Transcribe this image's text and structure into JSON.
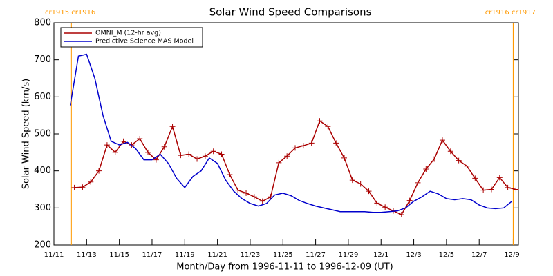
{
  "chart_data": {
    "type": "line",
    "title": "Solar Wind Speed Comparisons",
    "xlabel": "Month/Day from 1996-11-11 to 1996-12-09 (UT)",
    "ylabel": "Solar Wind Speed (km/s)",
    "xlim": [
      0,
      28.4
    ],
    "ylim": [
      200,
      800
    ],
    "xticks": [
      {
        "value": 0,
        "label": "11/11"
      },
      {
        "value": 2,
        "label": "11/13"
      },
      {
        "value": 4,
        "label": "11/15"
      },
      {
        "value": 6,
        "label": "11/17"
      },
      {
        "value": 8,
        "label": "11/19"
      },
      {
        "value": 10,
        "label": "11/21"
      },
      {
        "value": 12,
        "label": "11/23"
      },
      {
        "value": 14,
        "label": "11/25"
      },
      {
        "value": 16,
        "label": "11/27"
      },
      {
        "value": 18,
        "label": "11/29"
      },
      {
        "value": 20,
        "label": "12/1"
      },
      {
        "value": 22,
        "label": "12/3"
      },
      {
        "value": 24,
        "label": "12/5"
      },
      {
        "value": 26,
        "label": "12/7"
      },
      {
        "value": 28,
        "label": "12/9"
      }
    ],
    "yticks": [
      200,
      300,
      400,
      500,
      600,
      700,
      800
    ],
    "legend": "upper left",
    "annotations": [
      {
        "x": 1.05,
        "label": "cr1915 cr1916",
        "color": "#ff9900"
      },
      {
        "x": 28.1,
        "label": "cr1916 cr1917",
        "color": "#ff9900"
      }
    ],
    "series": [
      {
        "name": "OMNI_M (12-hr avg)",
        "color": "#aa0000",
        "marker": "+",
        "x": [
          1.25,
          1.75,
          2.25,
          2.75,
          3.25,
          3.75,
          4.25,
          4.75,
          5.25,
          5.75,
          6.25,
          6.75,
          7.25,
          7.75,
          8.25,
          8.75,
          9.25,
          9.75,
          10.25,
          10.75,
          11.25,
          11.75,
          12.25,
          12.75,
          13.25,
          13.75,
          14.25,
          14.75,
          15.25,
          15.75,
          16.25,
          16.75,
          17.25,
          17.75,
          18.25,
          18.75,
          19.25,
          19.75,
          20.25,
          20.75,
          21.25,
          21.75,
          22.25,
          22.75,
          23.25,
          23.75,
          24.25,
          24.75,
          25.25,
          25.75,
          26.25,
          26.75,
          27.25,
          27.75,
          28.25
        ],
        "values": [
          355,
          356,
          370,
          400,
          470,
          450,
          480,
          470,
          487,
          450,
          430,
          465,
          520,
          442,
          445,
          432,
          440,
          453,
          445,
          390,
          348,
          340,
          330,
          318,
          330,
          422,
          440,
          462,
          468,
          475,
          535,
          520,
          475,
          435,
          375,
          365,
          345,
          313,
          302,
          292,
          282,
          320,
          368,
          405,
          432,
          483,
          453,
          428,
          413,
          380,
          348,
          350,
          382,
          355,
          350
        ]
      },
      {
        "name": "Predictive Science MAS Model",
        "color": "#0000cc",
        "x": [
          1.0,
          1.5,
          2.0,
          2.5,
          3.0,
          3.5,
          4.0,
          4.5,
          5.0,
          5.5,
          6.0,
          6.5,
          7.0,
          7.5,
          8.0,
          8.5,
          9.0,
          9.5,
          10.0,
          10.5,
          11.0,
          11.5,
          12.0,
          12.5,
          13.0,
          13.5,
          14.0,
          14.5,
          15.0,
          15.5,
          16.0,
          16.5,
          17.0,
          17.5,
          18.0,
          18.5,
          19.0,
          19.5,
          20.0,
          20.5,
          21.0,
          21.5,
          22.0,
          22.5,
          23.0,
          23.5,
          24.0,
          24.5,
          25.0,
          25.5,
          26.0,
          26.5,
          27.0,
          27.5,
          28.0
        ],
        "values": [
          577,
          710,
          715,
          650,
          550,
          480,
          470,
          477,
          460,
          430,
          430,
          445,
          420,
          380,
          355,
          385,
          400,
          435,
          420,
          375,
          345,
          325,
          312,
          305,
          312,
          335,
          340,
          333,
          320,
          312,
          305,
          300,
          295,
          290,
          290,
          290,
          290,
          288,
          288,
          290,
          292,
          300,
          318,
          330,
          345,
          338,
          325,
          322,
          325,
          322,
          308,
          300,
          298,
          300,
          318
        ]
      }
    ]
  }
}
